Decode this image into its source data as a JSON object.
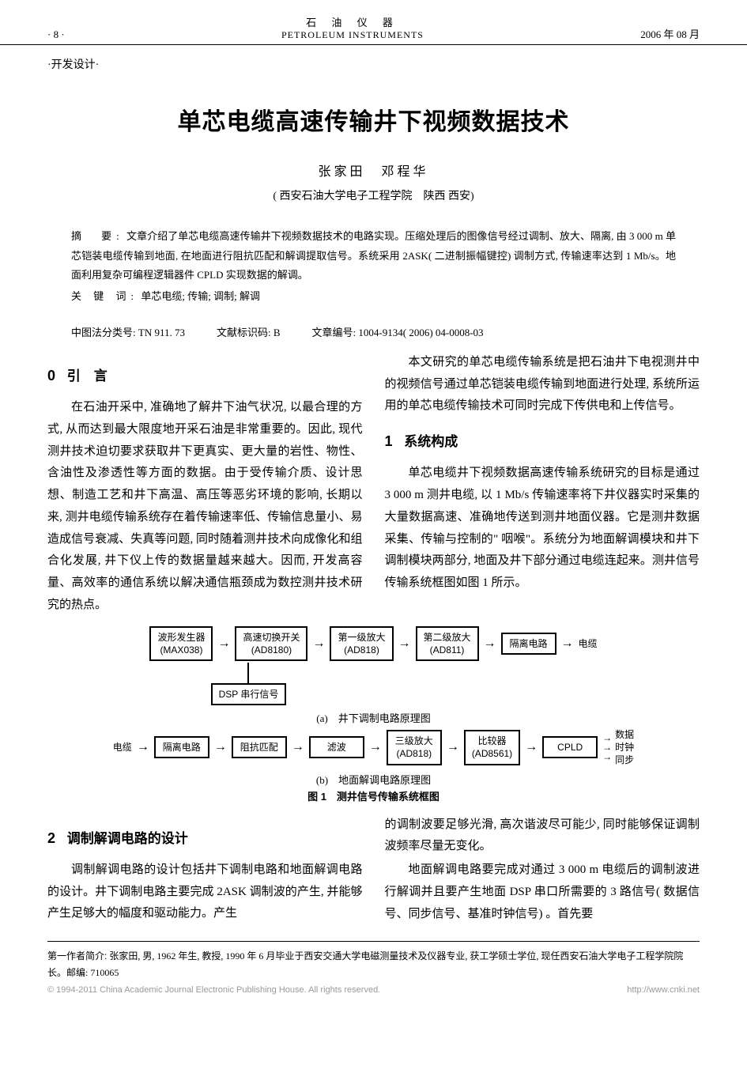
{
  "header": {
    "page_left": "· 8 ·",
    "journal_cn": "石 油 仪 器",
    "journal_en": "PETROLEUM  INSTRUMENTS",
    "date": "2006 年 08 月"
  },
  "section_tag": "·开发设计·",
  "title": "单芯电缆高速传输井下视频数据技术",
  "authors": "张家田　邓程华",
  "affiliation": "( 西安石油大学电子工程学院　陕西 西安)",
  "abstract": {
    "label": "摘　要:",
    "text": "文章介绍了单芯电缆高速传输井下视频数据技术的电路实现。压缩处理后的图像信号经过调制、放大、隔离, 由 3 000 m 单芯铠装电缆传输到地面, 在地面进行阻抗匹配和解调提取信号。系统采用 2ASK( 二进制振幅键控) 调制方式, 传输速率达到 1 Mb/s。地面利用复杂可编程逻辑器件 CPLD 实现数据的解调。",
    "keywords_label": "关 键 词:",
    "keywords": "单芯电缆; 传输; 调制; 解调"
  },
  "classify": {
    "clc_label": "中图法分类号:",
    "clc": "TN 911. 73",
    "doc_code_label": "文献标识码:",
    "doc_code": "B",
    "article_id_label": "文章编号:",
    "article_id": "1004-9134( 2006) 04-0008-03"
  },
  "sections": {
    "s0": {
      "num": "0",
      "title": "引　言"
    },
    "s1": {
      "num": "1",
      "title": "系统构成"
    },
    "s2": {
      "num": "2",
      "title": "调制解调电路的设计"
    }
  },
  "body": {
    "p1": "在石油开采中, 准确地了解井下油气状况, 以最合理的方式, 从而达到最大限度地开采石油是非常重要的。因此, 现代测井技术迫切要求获取井下更真实、更大量的岩性、物性、含油性及渗透性等方面的数据。由于受传输介质、设计思想、制造工艺和井下高温、高压等恶劣环境的影响, 长期以来, 测井电缆传输系统存在着传输速率低、传输信息量小、易造成信号衰减、失真等问题, 同时随着测井技术向成像化和组合化发展, 井下仪上传的数据量越来越大。因而, 开发高容量、高效率的通信系统以解决通信瓶颈成为数控测井技术研究的热点。",
    "p2": "本文研究的单芯电缆传输系统是把石油井下电视测井中的视频信号通过单芯铠装电缆传输到地面进行处理, 系统所运用的单芯电缆传输技术可同时完成下传供电和上传信号。",
    "p3": "单芯电缆井下视频数据高速传输系统研究的目标是通过 3 000 m 测井电缆, 以 1 Mb/s 传输速率将下井仪器实时采集的大量数据高速、准确地传送到测井地面仪器。它是测井数据采集、传输与控制的\" 咽喉\"。系统分为地面解调模块和井下调制模块两部分, 地面及井下部分通过电缆连起来。测井信号传输系统框图如图 1 所示。",
    "p4": "调制解调电路的设计包括井下调制电路和地面解调电路的设计。井下调制电路主要完成 2ASK 调制波的产生, 并能够产生足够大的幅度和驱动能力。产生",
    "p5": "的调制波要足够光滑, 高次谐波尽可能少, 同时能够保证调制波频率尽量无变化。",
    "p6": "地面解调电路要完成对通过 3 000 m 电缆后的调制波进行解调并且要产生地面 DSP 串口所需要的 3 路信号( 数据信号、同步信号、基准时钟信号) 。首先要"
  },
  "figure": {
    "a": {
      "nodes": {
        "n1": {
          "l1": "波形发生器",
          "l2": "(MAX038)"
        },
        "n2": {
          "l1": "高速切换开关",
          "l2": "(AD8180)"
        },
        "n3": {
          "l1": "第一级放大",
          "l2": "(AD818)"
        },
        "n4": {
          "l1": "第二级放大",
          "l2": "(AD811)"
        },
        "n5": {
          "l1": "隔离电路",
          "l2": ""
        }
      },
      "out_label": "电缆",
      "dsp_label": "DSP 串行信号",
      "caption": "(a)　井下调制电路原理图"
    },
    "b": {
      "in_label": "电缆",
      "nodes": {
        "n1": {
          "l1": "隔离电路",
          "l2": ""
        },
        "n2": {
          "l1": "阻抗匹配",
          "l2": ""
        },
        "n3": {
          "l1": "滤波",
          "l2": ""
        },
        "n4": {
          "l1": "三级放大",
          "l2": "(AD818)"
        },
        "n5": {
          "l1": "比较器",
          "l2": "(AD8561)"
        },
        "n6": {
          "l1": "CPLD",
          "l2": ""
        }
      },
      "outputs": {
        "o1": "数据",
        "o2": "时钟",
        "o3": "同步"
      },
      "caption": "(b)　地面解调电路原理图"
    },
    "title": "图 1　测井信号传输系统框图"
  },
  "footer": {
    "bio_label": "第一作者简介:",
    "bio": "张家田, 男, 1962 年生, 教授, 1990 年 6 月毕业于西安交通大学电磁测量技术及仪器专业, 获工学硕士学位, 现任西安石油大学电子工程学院院长。邮编: 710065"
  },
  "copyright": {
    "left": "© 1994-2011 China Academic Journal Electronic Publishing House. All rights reserved.",
    "right": "http://www.cnki.net"
  }
}
